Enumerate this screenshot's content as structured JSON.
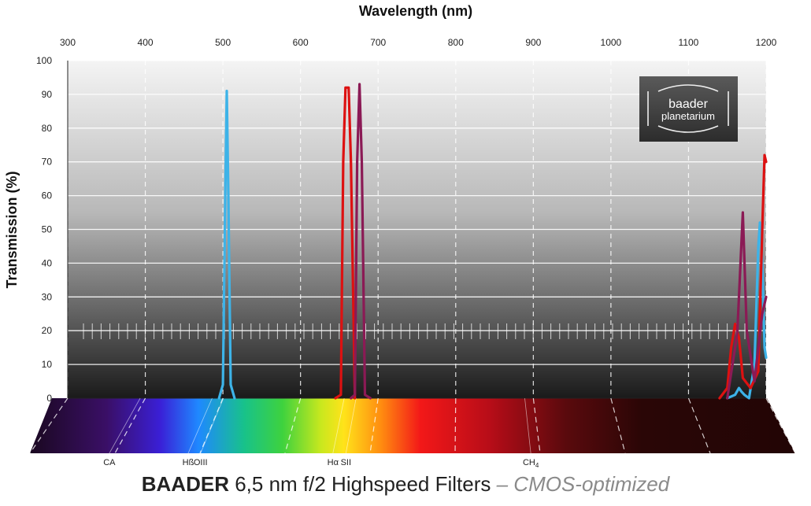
{
  "chart_data": {
    "type": "line",
    "title": "",
    "xlabel": "Wavelength (nm)",
    "ylabel": "Transmission (%)",
    "xlim": [
      300,
      1200
    ],
    "ylim": [
      0,
      100
    ],
    "x_ticks": [
      300,
      400,
      500,
      600,
      700,
      800,
      900,
      1000,
      1100,
      1200
    ],
    "y_ticks": [
      0,
      10,
      20,
      30,
      40,
      50,
      60,
      70,
      80,
      90,
      100
    ],
    "grid": true,
    "legend": "none",
    "series": [
      {
        "color": "#3db3e8",
        "x": [
          495,
          500,
          503,
          505,
          507,
          510,
          515,
          1150,
          1160,
          1165,
          1168,
          1172,
          1178,
          1185,
          1190,
          1192,
          1195,
          1198,
          1200
        ],
        "y": [
          0,
          4,
          60,
          91,
          60,
          4,
          0,
          0,
          1,
          3,
          2,
          1,
          0,
          10,
          45,
          52,
          40,
          15,
          12
        ]
      },
      {
        "color": "#dd1111",
        "x": [
          645,
          652,
          655,
          658,
          662,
          665,
          670,
          1140,
          1150,
          1155,
          1160,
          1165,
          1170,
          1180,
          1190,
          1195,
          1198,
          1200
        ],
        "y": [
          0,
          1,
          70,
          92,
          92,
          70,
          0,
          0,
          3,
          15,
          22,
          18,
          6,
          3,
          8,
          50,
          72,
          70
        ]
      },
      {
        "color": "#8b1a55",
        "x": [
          665,
          670,
          673,
          676,
          679,
          683,
          690,
          1150,
          1160,
          1163,
          1166,
          1170,
          1175,
          1185,
          1195,
          1200
        ],
        "y": [
          0,
          1,
          70,
          93,
          70,
          1,
          0,
          0,
          15,
          20,
          35,
          55,
          20,
          5,
          25,
          30
        ]
      }
    ],
    "annotations": [
      {
        "text": "CA",
        "x": 393.4
      },
      {
        "text": "Hß",
        "x": 486.1
      },
      {
        "text": "OIII",
        "x": 500.7
      },
      {
        "text": "Hα",
        "x": 656.3
      },
      {
        "text": "SII",
        "x": 671.6
      },
      {
        "text": "CH",
        "subscript": "4",
        "x": 889
      }
    ],
    "logo": {
      "line1": "baader",
      "line2": "planetarium"
    }
  },
  "footer": {
    "brand": "BAADER",
    "product": "6,5 nm f/2 Highspeed Filters",
    "suffix": "– CMOS-optimized"
  }
}
